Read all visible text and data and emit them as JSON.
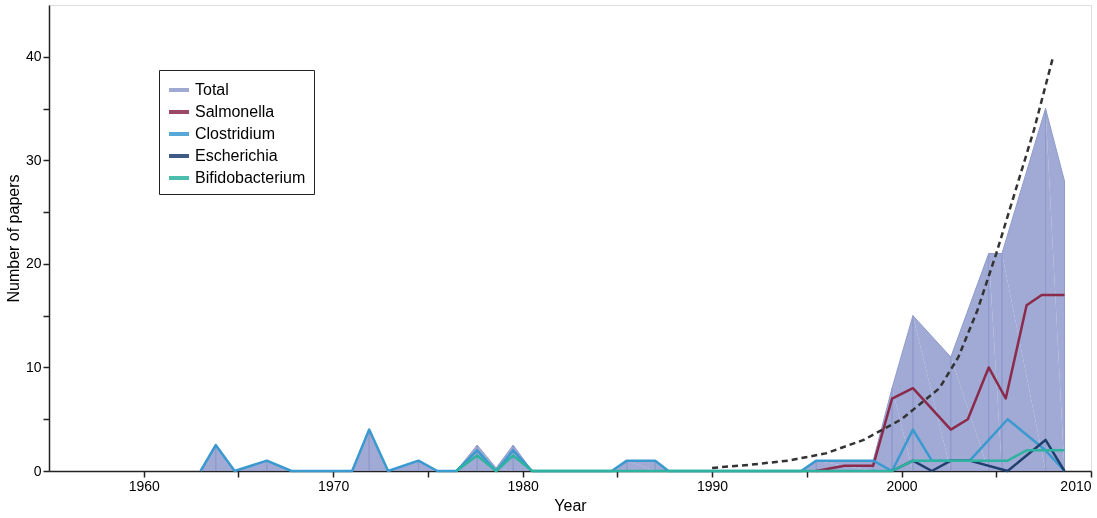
{
  "chart_data": {
    "type": "line",
    "xlabel": "Year",
    "ylabel": "Number of papers",
    "xlim": [
      1955,
      2010
    ],
    "ylim": [
      0,
      45
    ],
    "xticks": [
      1960,
      {
        "value": 1965,
        "label": null
      },
      1970,
      {
        "value": 1975,
        "label": null
      },
      1980,
      {
        "value": 1985,
        "label": null
      },
      1990,
      {
        "value": 1995,
        "label": null
      },
      2000,
      {
        "value": 2005,
        "label": null
      },
      2010
    ],
    "yticks": [
      0,
      {
        "value": 5,
        "label": null
      },
      10,
      {
        "value": 15,
        "label": null
      },
      20,
      {
        "value": 25,
        "label": null
      },
      30,
      {
        "value": 35,
        "label": null
      },
      40
    ],
    "grid": false,
    "legend": "top left",
    "marker": "none",
    "series": [
      {
        "name": "Total",
        "type": "area",
        "color": "#8f9bcc",
        "x": [
          1963.0,
          1963.8,
          1964.8,
          1966.5,
          1967.8,
          1971.0,
          1971.9,
          1972.9,
          1974.5,
          1975.5,
          1976.5,
          1977.6,
          1978.6,
          1979.5,
          1980.5,
          1984.7,
          1985.5,
          1987.0,
          1987.7,
          1994.7,
          1995.5,
          1998.5,
          1999.5,
          2000.6,
          2002.6,
          2004.6,
          2005.3,
          2007.6,
          2008.6
        ],
        "values": [
          0,
          2.5,
          0,
          1,
          0,
          0,
          4,
          0,
          1,
          0,
          0,
          2.5,
          0.3,
          2.5,
          0,
          0,
          1,
          1,
          0,
          0,
          1,
          1,
          8,
          15,
          11,
          21,
          21,
          35,
          28
        ]
      },
      {
        "name": "Salmonella",
        "line_style": "solid",
        "color": "#8b2a4a",
        "x": [
          1995.5,
          1997.0,
          1998.5,
          1999.5,
          2000.6,
          2002.6,
          2003.5,
          2004.6,
          2005.5,
          2006.6,
          2007.4,
          2008.6
        ],
        "values": [
          0,
          0.5,
          0.5,
          7,
          8,
          4,
          5,
          10,
          7,
          16,
          17,
          17
        ]
      },
      {
        "name": "Clostridium",
        "line_style": "solid",
        "color": "#3a9ad0",
        "x": [
          1963.0,
          1963.8,
          1964.8,
          1966.5,
          1967.8,
          1971.0,
          1971.9,
          1972.9,
          1974.5,
          1975.5,
          1976.5,
          1977.6,
          1978.6,
          1979.5,
          1980.5,
          1984.7,
          1985.5,
          1987.0,
          1987.7,
          1994.7,
          1995.5,
          1998.5,
          1999.5,
          2000.6,
          2001.6,
          2003.6,
          2005.6,
          2007.6,
          2008.6
        ],
        "values": [
          0,
          2.5,
          0,
          1,
          0,
          0,
          4,
          0,
          1,
          0,
          0,
          2,
          0,
          2,
          0,
          0,
          1,
          1,
          0,
          0,
          1,
          1,
          0,
          4,
          1,
          1,
          5,
          2,
          0
        ]
      },
      {
        "name": "Escherichia",
        "line_style": "solid",
        "color": "#1f3f6e",
        "x": [
          1999.5,
          2000.6,
          2001.6,
          2002.6,
          2003.6,
          2005.6,
          2007.6,
          2008.6
        ],
        "values": [
          0,
          1,
          0,
          1,
          1,
          0,
          3,
          0
        ]
      },
      {
        "name": "Bifidobacterium",
        "line_style": "solid",
        "color": "#2db3a0",
        "x": [
          1976.5,
          1977.6,
          1978.6,
          1979.5,
          1980.5,
          1999.5,
          2000.6,
          2002.6,
          2004.6,
          2005.6,
          2006.6,
          2008.6
        ],
        "values": [
          0,
          1.5,
          0,
          1.5,
          0,
          0,
          1,
          1,
          1,
          1,
          2,
          2
        ]
      },
      {
        "line_style": "dashed",
        "color": "#333333",
        "x": [
          1990,
          1992,
          1994,
          1996,
          1998,
          2000,
          2001,
          2002,
          2003,
          2004,
          2005,
          2006,
          2007,
          2008
        ],
        "values": [
          0.3,
          0.6,
          1,
          1.7,
          3,
          5,
          6.5,
          8,
          11,
          15.5,
          21,
          27,
          33,
          40
        ]
      }
    ]
  }
}
